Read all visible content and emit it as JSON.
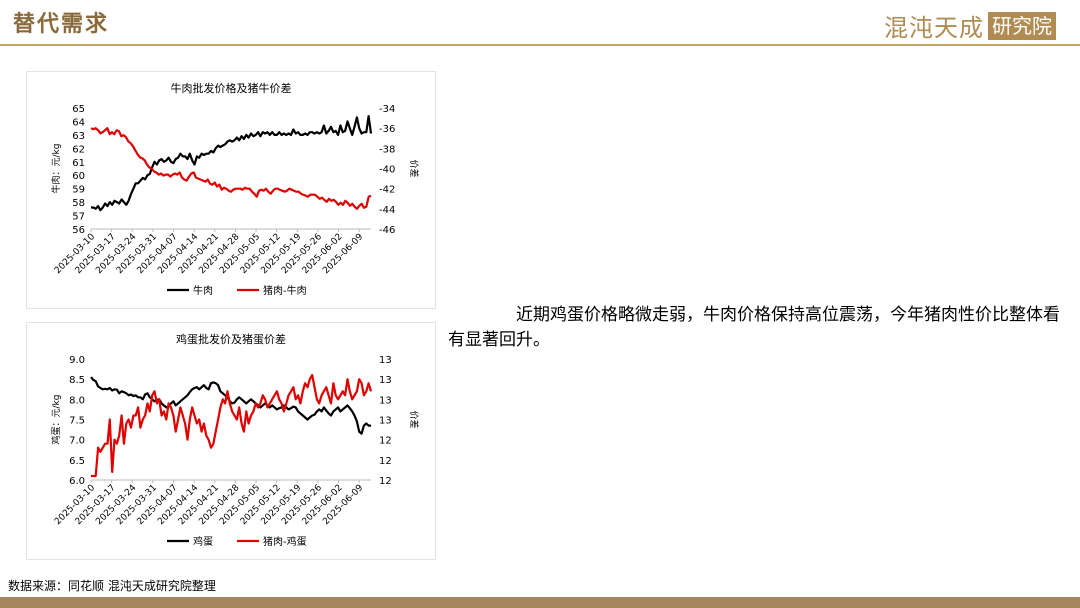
{
  "header": {
    "title": "替代需求",
    "logo_text": "混沌天成",
    "logo_box_text": "研究院",
    "accent_color": "#c9a46a"
  },
  "commentary": "近期鸡蛋价格略微走弱，牛肉价格保持高位震荡，今年猪肉性价比整体看有显著回升。",
  "source": "数据来源：同花顺 混沌天成研究院整理",
  "chart_data": [
    {
      "type": "line",
      "title": "牛肉批发价格及猪牛价差",
      "ylabel": "牛肉：元/kg",
      "y2label": "价差",
      "ylim": [
        56,
        65
      ],
      "yticks": [
        56,
        57,
        58,
        59,
        60,
        61,
        62,
        63,
        64,
        65
      ],
      "y2lim": [
        -46,
        -34
      ],
      "y2ticks": [
        -34,
        -36,
        -38,
        -40,
        -42,
        -44,
        -46
      ],
      "x_ticks": [
        "2025-03-10",
        "2025-03-17",
        "2025-03-24",
        "2025-03-31",
        "2025-04-07",
        "2025-04-14",
        "2025-04-21",
        "2025-04-28",
        "2025-05-05",
        "2025-05-12",
        "2025-05-19",
        "2025-05-26",
        "2025-06-02",
        "2025-06-09"
      ],
      "x_start": "2025-03-10",
      "x_end": "2025-06-13",
      "series": [
        {
          "name": "牛肉",
          "axis": "left",
          "color": "#000000",
          "values": [
            57.6,
            57.6,
            57.5,
            57.7,
            57.4,
            57.6,
            57.9,
            57.7,
            58.0,
            57.8,
            58.1,
            58.0,
            57.9,
            58.2,
            58.0,
            57.8,
            58.1,
            58.6,
            59.0,
            59.4,
            59.4,
            59.6,
            59.8,
            59.7,
            60.0,
            60.1,
            60.6,
            61.0,
            60.8,
            61.1,
            61.2,
            61.0,
            61.1,
            61.3,
            61.0,
            60.9,
            61.2,
            61.3,
            61.6,
            61.4,
            61.4,
            61.2,
            61.6,
            61.1,
            60.8,
            61.4,
            61.3,
            61.6,
            61.5,
            61.6,
            61.6,
            61.8,
            61.7,
            62.0,
            62.2,
            62.1,
            62.2,
            62.3,
            62.5,
            62.6,
            62.5,
            62.6,
            62.8,
            62.6,
            62.9,
            62.7,
            63.0,
            62.8,
            63.1,
            62.9,
            63.0,
            63.2,
            62.9,
            63.2,
            63.1,
            63.2,
            63.0,
            63.2,
            63.0,
            63.0,
            63.2,
            63.0,
            63.1,
            63.0,
            63.1,
            63.0,
            63.4,
            63.1,
            63.2,
            63.0,
            63.0,
            63.1,
            63.0,
            63.2,
            63.2,
            63.1,
            63.2,
            63.1,
            63.2,
            63.7,
            63.1,
            63.3,
            63.6,
            63.2,
            63.3,
            63.0,
            63.7,
            63.2,
            63.3,
            64.0,
            63.5,
            63.0,
            63.6,
            64.3,
            63.5,
            63.1,
            63.2,
            63.2,
            64.4,
            63.1
          ]
        },
        {
          "name": "猪肉-牛肉",
          "axis": "right",
          "color": "#e00000",
          "values": [
            -36.0,
            -36.1,
            -36.0,
            -36.2,
            -36.5,
            -36.4,
            -36.2,
            -36.0,
            -36.6,
            -36.4,
            -36.6,
            -36.2,
            -36.3,
            -36.8,
            -36.7,
            -36.9,
            -37.3,
            -37.5,
            -37.8,
            -38.2,
            -38.6,
            -38.9,
            -39.0,
            -39.2,
            -39.6,
            -39.9,
            -40.0,
            -40.3,
            -40.4,
            -40.6,
            -40.5,
            -40.7,
            -40.6,
            -40.6,
            -40.8,
            -40.6,
            -40.5,
            -40.6,
            -40.4,
            -40.9,
            -41.1,
            -41.2,
            -40.8,
            -40.5,
            -40.4,
            -40.9,
            -41.0,
            -41.1,
            -41.2,
            -41.3,
            -41.1,
            -41.5,
            -41.6,
            -41.4,
            -41.8,
            -41.6,
            -42.1,
            -41.9,
            -42.0,
            -42.2,
            -42.3,
            -42.1,
            -42.0,
            -42.0,
            -42.0,
            -42.1,
            -41.9,
            -42.0,
            -42.0,
            -42.3,
            -42.5,
            -42.8,
            -42.2,
            -42.1,
            -42.2,
            -42.0,
            -42.3,
            -42.5,
            -42.2,
            -42.0,
            -42.0,
            -42.1,
            -42.2,
            -42.3,
            -42.2,
            -42.0,
            -42.1,
            -42.2,
            -42.3,
            -42.3,
            -42.5,
            -42.6,
            -42.7,
            -42.8,
            -42.6,
            -42.6,
            -42.6,
            -42.8,
            -43.0,
            -42.9,
            -43.1,
            -43.3,
            -43.0,
            -43.2,
            -43.1,
            -43.3,
            -43.6,
            -43.4,
            -43.6,
            -43.2,
            -43.4,
            -43.7,
            -43.5,
            -43.8,
            -44.0,
            -43.7,
            -43.5,
            -43.9,
            -43.8,
            -42.8,
            -42.7
          ]
        }
      ]
    },
    {
      "type": "line",
      "title": "鸡蛋批发价及猪蛋价差",
      "ylabel": "鸡蛋：元/kg",
      "y2label": "价差",
      "ylim": [
        6.0,
        9.0
      ],
      "yticks": [
        "6.0",
        "6.5",
        "7.0",
        "7.5",
        "8.0",
        "8.5",
        "9.0"
      ],
      "y2lim": [
        12,
        13.5
      ],
      "y2ticks": [
        "12",
        "12",
        "12",
        "13",
        "13",
        "13",
        "13"
      ],
      "x_ticks": [
        "2025-03-10",
        "2025-03-17",
        "2025-03-24",
        "2025-03-31",
        "2025-04-07",
        "2025-04-14",
        "2025-04-21",
        "2025-04-28",
        "2025-05-05",
        "2025-05-12",
        "2025-05-19",
        "2025-05-26",
        "2025-06-02",
        "2025-06-09"
      ],
      "x_start": "2025-03-10",
      "x_end": "2025-06-13",
      "series": [
        {
          "name": "鸡蛋",
          "axis": "left",
          "color": "#000000",
          "values": [
            8.55,
            8.48,
            8.45,
            8.32,
            8.28,
            8.25,
            8.26,
            8.25,
            8.28,
            8.22,
            8.25,
            8.24,
            8.15,
            8.2,
            8.18,
            8.15,
            8.1,
            8.12,
            8.08,
            8.1,
            8.05,
            8.05,
            8.0,
            8.12,
            8.15,
            8.05,
            8.0,
            7.95,
            7.98,
            8.0,
            7.9,
            7.85,
            7.8,
            7.82,
            7.9,
            7.95,
            7.85,
            7.9,
            7.95,
            8.0,
            8.05,
            8.1,
            8.18,
            8.25,
            8.28,
            8.3,
            8.25,
            8.3,
            8.35,
            8.28,
            8.25,
            8.4,
            8.42,
            8.4,
            8.35,
            8.2,
            8.15,
            8.1,
            8.05,
            7.95,
            7.9,
            7.92,
            8.0,
            8.05,
            8.0,
            7.95,
            7.9,
            7.95,
            8.0,
            7.95,
            7.9,
            7.85,
            7.8,
            7.85,
            7.9,
            7.85,
            7.8,
            7.85,
            7.8,
            7.75,
            7.78,
            7.8,
            7.85,
            7.8,
            7.75,
            7.78,
            7.82,
            7.8,
            7.7,
            7.65,
            7.6,
            7.55,
            7.5,
            7.55,
            7.6,
            7.62,
            7.7,
            7.75,
            7.7,
            7.8,
            7.72,
            7.65,
            7.6,
            7.7,
            7.75,
            7.8,
            7.7,
            7.75,
            7.8,
            7.85,
            7.78,
            7.7,
            7.6,
            7.45,
            7.2,
            7.15,
            7.35,
            7.4,
            7.35,
            7.35
          ]
        },
        {
          "name": "猪肉-鸡蛋",
          "axis": "right",
          "color": "#e00000",
          "values": [
            12.05,
            12.05,
            12.05,
            12.4,
            12.35,
            12.4,
            12.45,
            12.45,
            12.75,
            12.1,
            12.5,
            12.45,
            12.55,
            12.8,
            12.45,
            12.7,
            12.75,
            12.65,
            12.8,
            12.8,
            12.9,
            12.65,
            12.75,
            12.8,
            12.95,
            12.85,
            13.05,
            13.1,
            12.95,
            13.0,
            12.8,
            12.85,
            12.75,
            12.95,
            12.9,
            12.8,
            12.6,
            12.75,
            12.9,
            12.8,
            12.7,
            12.5,
            12.75,
            12.9,
            12.8,
            12.7,
            12.75,
            12.6,
            12.7,
            12.55,
            12.5,
            12.4,
            12.45,
            12.6,
            12.75,
            12.9,
            13.0,
            12.95,
            13.1,
            12.95,
            12.85,
            12.8,
            12.75,
            12.9,
            12.7,
            12.6,
            12.85,
            12.7,
            12.8,
            12.85,
            12.95,
            12.9,
            12.95,
            13.05,
            13.0,
            12.9,
            12.95,
            13.0,
            13.05,
            13.1,
            13.0,
            12.95,
            12.85,
            12.95,
            13.05,
            13.1,
            13.15,
            13.0,
            13.05,
            12.95,
            13.1,
            13.2,
            13.15,
            13.25,
            13.3,
            13.15,
            13.0,
            12.95,
            13.05,
            13.1,
            13.15,
            13.05,
            12.95,
            13.2,
            13.05,
            13.0,
            13.05,
            13.1,
            13.05,
            13.25,
            13.1,
            13.0,
            13.05,
            13.1,
            13.25,
            13.2,
            13.05,
            13.1,
            13.2,
            13.1
          ]
        }
      ]
    }
  ]
}
